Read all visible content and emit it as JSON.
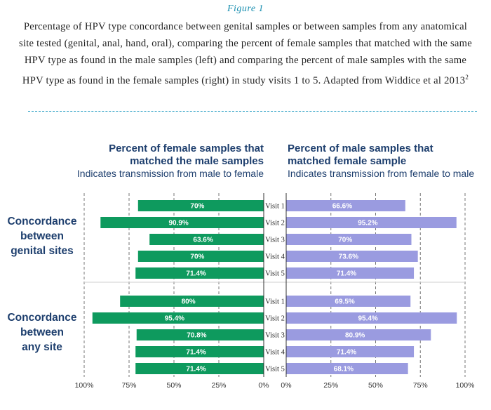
{
  "caption": {
    "figure_label": "Figure 1",
    "text": "Percentage of HPV type concordance between genital samples or between samples from any anatomical site tested (genital, anal, hand, oral), comparing the percent of female samples that matched with the same HPV type as found in the male samples (left) and comparing the percent of male samples with the same HPV type as found in the female samples (right) in study visits 1 to 5. Adapted from Widdice et al 2013",
    "superscript": "2"
  },
  "chart_data": {
    "type": "bar",
    "orientation": "horizontal",
    "layout": "back-to-back",
    "left_panel": {
      "title": [
        "Percent of female samples that",
        "matched the male samples"
      ],
      "subtitle": "Indicates transmission from male to female",
      "color": "#0e9a5e",
      "xlim": [
        0,
        100
      ],
      "ticks": [
        "100%",
        "75%",
        "50%",
        "25%",
        "0%"
      ]
    },
    "right_panel": {
      "title": [
        "Percent of male samples that",
        "matched female sample"
      ],
      "subtitle": "Indicates transmission from female to male",
      "color": "#9a9be0",
      "xlim": [
        0,
        100
      ],
      "ticks": [
        "0%",
        "25%",
        "50%",
        "75%",
        "100%"
      ]
    },
    "groups": [
      {
        "label": [
          "Concordance",
          "between",
          "genital sites"
        ],
        "categories": [
          "Visit 1",
          "Visit 2",
          "Visit 3",
          "Visit 4",
          "Visit 5"
        ],
        "female_matched": [
          70,
          90.9,
          63.6,
          70,
          71.4
        ],
        "female_labels": [
          "70%",
          "90.9%",
          "63.6%",
          "70%",
          "71.4%"
        ],
        "male_matched": [
          66.6,
          95.2,
          70,
          73.6,
          71.4
        ],
        "male_labels": [
          "66.6%",
          "95.2%",
          "70%",
          "73.6%",
          "71.4%"
        ]
      },
      {
        "label": [
          "Concordance",
          "between",
          "any site"
        ],
        "categories": [
          "Visit 1",
          "Visit 2",
          "Visit 3",
          "Visit 4",
          "Visit 5"
        ],
        "female_matched": [
          80,
          95.4,
          70.8,
          71.4,
          71.4
        ],
        "female_labels": [
          "80%",
          "95.4%",
          "70.8%",
          "71.4%",
          "71.4%"
        ],
        "male_matched": [
          69.5,
          95.4,
          80.9,
          71.4,
          68.1
        ],
        "male_labels": [
          "69.5%",
          "95.4%",
          "80.9%",
          "71.4%",
          "68.1%"
        ]
      }
    ],
    "grid": "dashed vertical at 25% steps"
  }
}
